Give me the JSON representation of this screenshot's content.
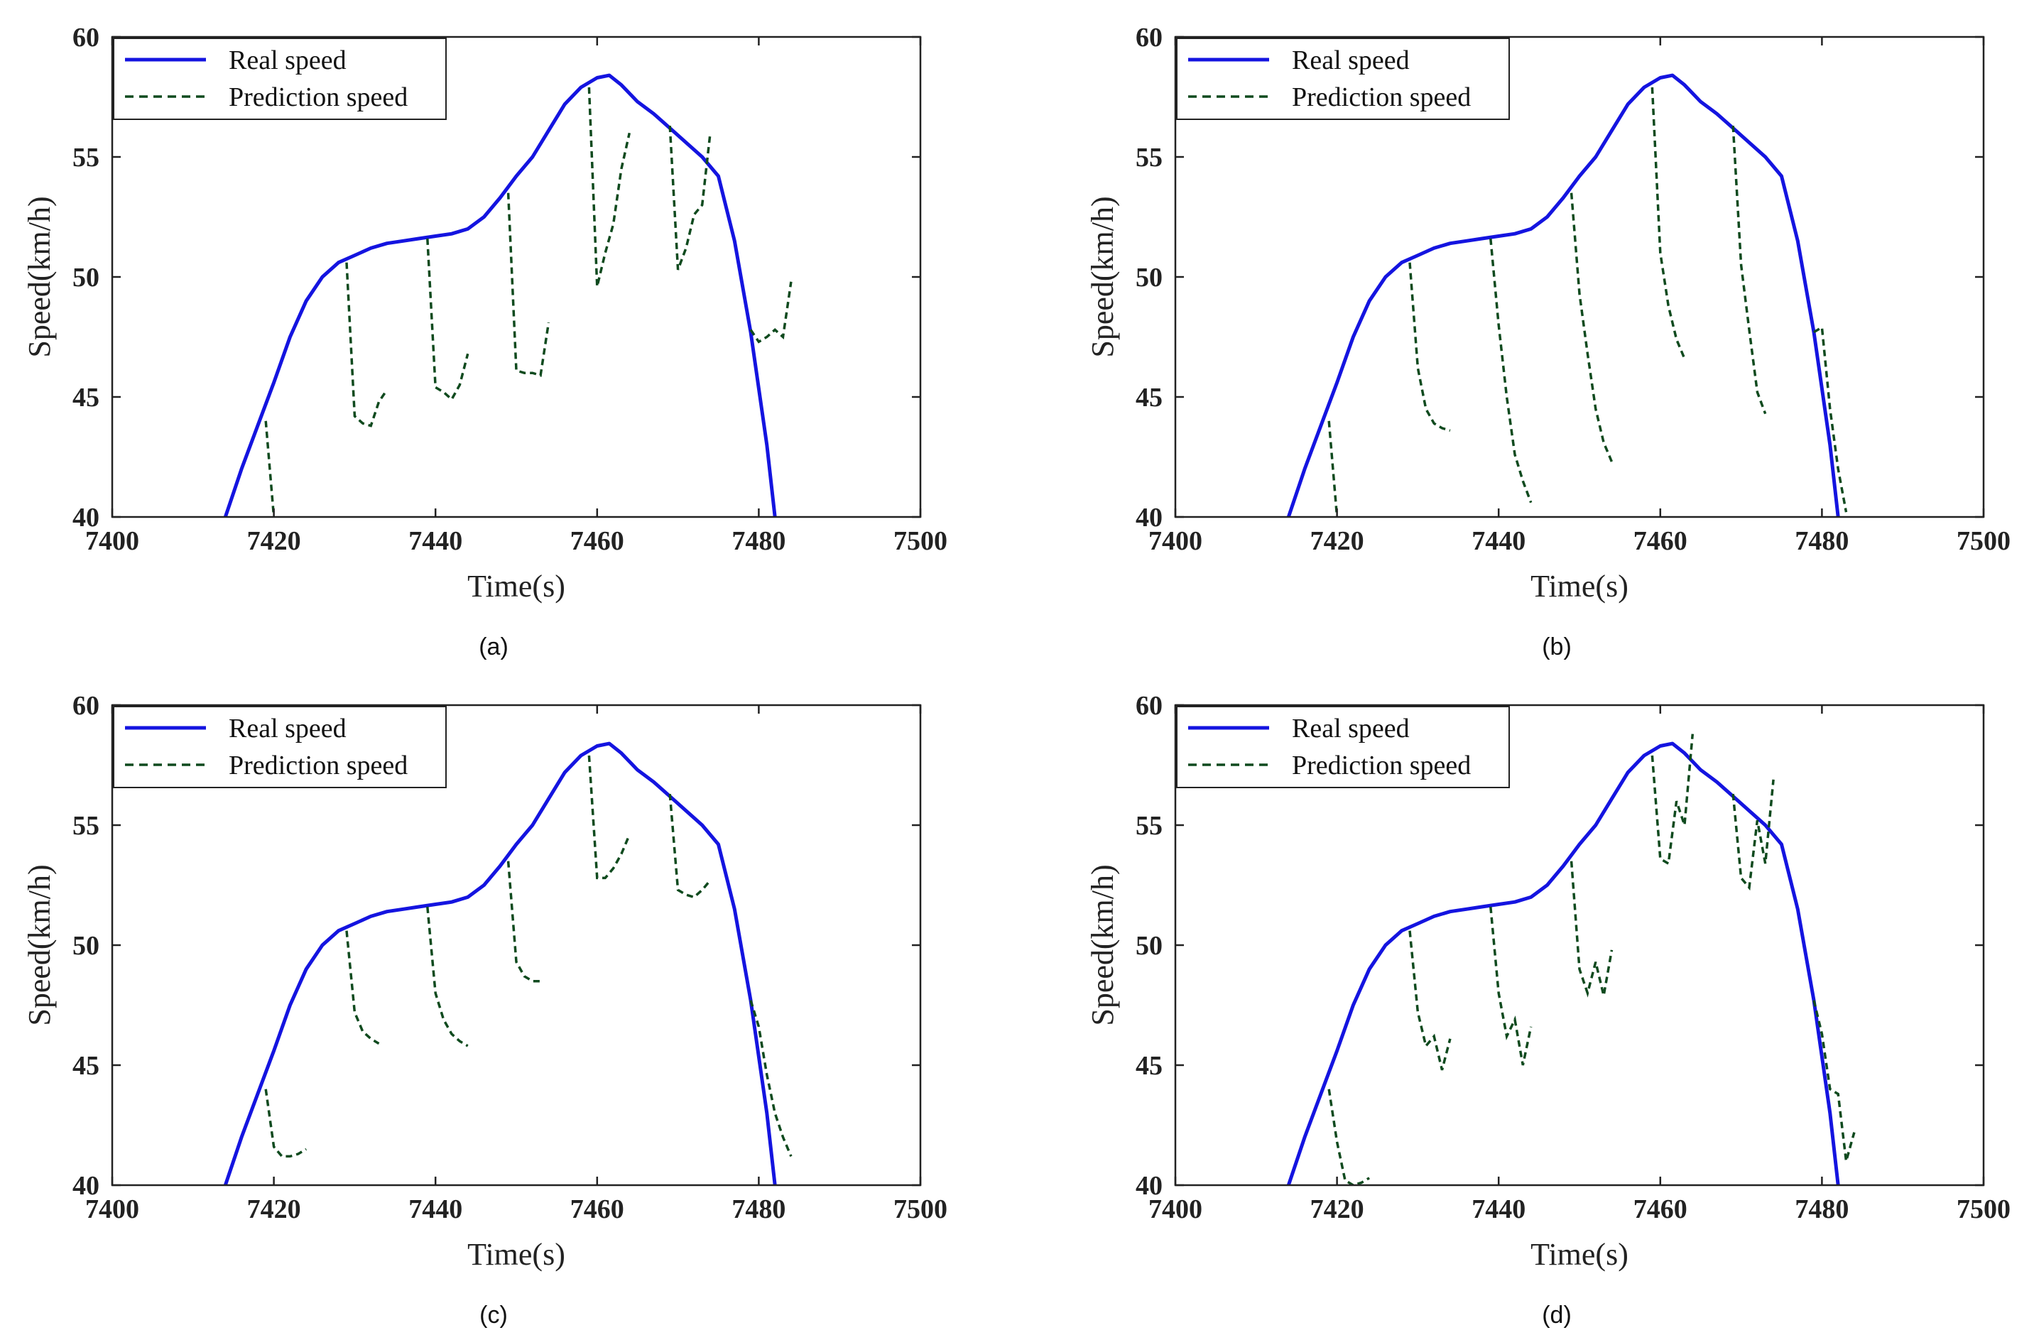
{
  "colors": {
    "real": "#1414e0",
    "prediction": "#0f4a1e",
    "axis": "#222222"
  },
  "chart_data": [
    {
      "type": "line",
      "caption": "(a)",
      "xlabel": "Time(s)",
      "ylabel": "Speed(km/h)",
      "xlim": [
        7400,
        7500
      ],
      "ylim": [
        40,
        60
      ],
      "xticks": [
        "7400",
        "7420",
        "7440",
        "7460",
        "7480",
        "7500"
      ],
      "yticks": [
        "40",
        "45",
        "50",
        "55",
        "60"
      ],
      "legend": [
        "Real speed",
        "Prediction speed"
      ],
      "series": [
        {
          "name": "Real speed",
          "x": [
            7414,
            7416,
            7418,
            7420,
            7422,
            7424,
            7426,
            7428,
            7430,
            7432,
            7434,
            7436,
            7438,
            7440,
            7442,
            7444,
            7446,
            7448,
            7450,
            7452,
            7454,
            7456,
            7458,
            7460,
            7461.5,
            7463,
            7465,
            7467,
            7469,
            7471,
            7473,
            7475,
            7477,
            7479,
            7481,
            7482
          ],
          "y": [
            40,
            42,
            43.8,
            45.6,
            47.5,
            49,
            50,
            50.6,
            50.9,
            51.2,
            51.4,
            51.5,
            51.6,
            51.7,
            51.8,
            52.0,
            52.5,
            53.3,
            54.2,
            55.0,
            56.1,
            57.2,
            57.9,
            58.3,
            58.4,
            58.0,
            57.3,
            56.8,
            56.2,
            55.6,
            55.0,
            54.2,
            51.5,
            47.7,
            43.0,
            40
          ]
        },
        {
          "name": "Prediction speed",
          "segments": [
            {
              "x": [
                7419,
                7420
              ],
              "y": [
                44,
                40
              ]
            },
            {
              "x": [
                7429,
                7430,
                7431,
                7432,
                7433,
                7434
              ],
              "y": [
                50.6,
                44.2,
                43.9,
                43.8,
                44.8,
                45.3
              ]
            },
            {
              "x": [
                7439,
                7440,
                7441,
                7442,
                7443,
                7444
              ],
              "y": [
                51.6,
                45.4,
                45.2,
                44.9,
                45.5,
                46.8
              ]
            },
            {
              "x": [
                7449,
                7450,
                7451,
                7452,
                7453,
                7454
              ],
              "y": [
                53.5,
                46.1,
                46.0,
                46.0,
                45.9,
                48.1
              ]
            },
            {
              "x": [
                7459,
                7460,
                7461,
                7462,
                7463,
                7464
              ],
              "y": [
                57.9,
                49.6,
                51.0,
                52.2,
                54.5,
                56.0
              ]
            },
            {
              "x": [
                7469,
                7470,
                7471,
                7472,
                7473,
                7474
              ],
              "y": [
                56.3,
                50.3,
                51.2,
                52.6,
                53.0,
                56.0
              ]
            },
            {
              "x": [
                7479,
                7480,
                7481,
                7482,
                7483,
                7484
              ],
              "y": [
                47.8,
                47.3,
                47.5,
                47.8,
                47.5,
                49.8
              ]
            }
          ]
        }
      ]
    },
    {
      "type": "line",
      "caption": "(b)",
      "xlabel": "Time(s)",
      "ylabel": "Speed(km/h)",
      "xlim": [
        7400,
        7500
      ],
      "ylim": [
        40,
        60
      ],
      "xticks": [
        "7400",
        "7420",
        "7440",
        "7460",
        "7480",
        "7500"
      ],
      "yticks": [
        "40",
        "45",
        "50",
        "55",
        "60"
      ],
      "legend": [
        "Real speed",
        "Prediction speed"
      ],
      "series": [
        {
          "name": "Real speed",
          "x": [
            7414,
            7416,
            7418,
            7420,
            7422,
            7424,
            7426,
            7428,
            7430,
            7432,
            7434,
            7436,
            7438,
            7440,
            7442,
            7444,
            7446,
            7448,
            7450,
            7452,
            7454,
            7456,
            7458,
            7460,
            7461.5,
            7463,
            7465,
            7467,
            7469,
            7471,
            7473,
            7475,
            7477,
            7479,
            7481,
            7482
          ],
          "y": [
            40,
            42,
            43.8,
            45.6,
            47.5,
            49,
            50,
            50.6,
            50.9,
            51.2,
            51.4,
            51.5,
            51.6,
            51.7,
            51.8,
            52.0,
            52.5,
            53.3,
            54.2,
            55.0,
            56.1,
            57.2,
            57.9,
            58.3,
            58.4,
            58.0,
            57.3,
            56.8,
            56.2,
            55.6,
            55.0,
            54.2,
            51.5,
            47.7,
            43.0,
            40
          ]
        },
        {
          "name": "Prediction speed",
          "segments": [
            {
              "x": [
                7419,
                7420
              ],
              "y": [
                44,
                40
              ]
            },
            {
              "x": [
                7429,
                7430,
                7431,
                7432,
                7433,
                7434
              ],
              "y": [
                50.6,
                46.2,
                44.5,
                43.9,
                43.7,
                43.6
              ]
            },
            {
              "x": [
                7439,
                7440,
                7441,
                7442,
                7443,
                7444
              ],
              "y": [
                51.6,
                48.0,
                45.0,
                42.6,
                41.5,
                40.6
              ]
            },
            {
              "x": [
                7449,
                7450,
                7451,
                7452,
                7453,
                7454
              ],
              "y": [
                53.5,
                49.3,
                46.8,
                44.5,
                43.1,
                42.3
              ]
            },
            {
              "x": [
                7459,
                7460,
                7461,
                7462,
                7463
              ],
              "y": [
                57.9,
                51.0,
                48.8,
                47.4,
                46.6
              ]
            },
            {
              "x": [
                7469,
                7470,
                7471,
                7472,
                7473
              ],
              "y": [
                56.3,
                50.5,
                47.8,
                45.2,
                44.3
              ]
            },
            {
              "x": [
                7479,
                7480,
                7481,
                7482,
                7483
              ],
              "y": [
                47.7,
                47.9,
                44.5,
                42.0,
                40.2
              ]
            }
          ]
        }
      ]
    },
    {
      "type": "line",
      "caption": "(c)",
      "xlabel": "Time(s)",
      "ylabel": "Speed(km/h)",
      "xlim": [
        7400,
        7500
      ],
      "ylim": [
        40,
        60
      ],
      "xticks": [
        "7400",
        "7420",
        "7440",
        "7460",
        "7480",
        "7500"
      ],
      "yticks": [
        "40",
        "45",
        "50",
        "55",
        "60"
      ],
      "legend": [
        "Real speed",
        "Prediction speed"
      ],
      "series": [
        {
          "name": "Real speed",
          "x": [
            7414,
            7416,
            7418,
            7420,
            7422,
            7424,
            7426,
            7428,
            7430,
            7432,
            7434,
            7436,
            7438,
            7440,
            7442,
            7444,
            7446,
            7448,
            7450,
            7452,
            7454,
            7456,
            7458,
            7460,
            7461.5,
            7463,
            7465,
            7467,
            7469,
            7471,
            7473,
            7475,
            7477,
            7479,
            7481,
            7482
          ],
          "y": [
            40,
            42,
            43.8,
            45.6,
            47.5,
            49,
            50,
            50.6,
            50.9,
            51.2,
            51.4,
            51.5,
            51.6,
            51.7,
            51.8,
            52.0,
            52.5,
            53.3,
            54.2,
            55.0,
            56.1,
            57.2,
            57.9,
            58.3,
            58.4,
            58.0,
            57.3,
            56.8,
            56.2,
            55.6,
            55.0,
            54.2,
            51.5,
            47.7,
            43.0,
            40
          ]
        },
        {
          "name": "Prediction speed",
          "segments": [
            {
              "x": [
                7419,
                7420,
                7421,
                7422,
                7423,
                7424
              ],
              "y": [
                44,
                41.6,
                41.2,
                41.2,
                41.3,
                41.5
              ]
            },
            {
              "x": [
                7429,
                7430,
                7431,
                7432,
                7433
              ],
              "y": [
                50.6,
                47.2,
                46.4,
                46.1,
                45.9
              ]
            },
            {
              "x": [
                7439,
                7440,
                7441,
                7442,
                7443,
                7444
              ],
              "y": [
                51.6,
                48.0,
                46.9,
                46.3,
                46.0,
                45.8
              ]
            },
            {
              "x": [
                7449,
                7450,
                7451,
                7452,
                7453
              ],
              "y": [
                53.5,
                49.3,
                48.7,
                48.5,
                48.5
              ]
            },
            {
              "x": [
                7459,
                7460,
                7461,
                7462,
                7463,
                7464
              ],
              "y": [
                57.9,
                52.8,
                52.8,
                53.2,
                53.8,
                54.6
              ]
            },
            {
              "x": [
                7469,
                7470,
                7471,
                7472,
                7473,
                7474
              ],
              "y": [
                56.3,
                52.3,
                52.1,
                52.0,
                52.3,
                52.7
              ]
            },
            {
              "x": [
                7479,
                7480,
                7481,
                7482,
                7483,
                7484
              ],
              "y": [
                47.7,
                46.6,
                44.6,
                43.0,
                42.0,
                41.2
              ]
            }
          ]
        }
      ]
    },
    {
      "type": "line",
      "caption": "(d)",
      "xlabel": "Time(s)",
      "ylabel": "Speed(km/h)",
      "xlim": [
        7400,
        7500
      ],
      "ylim": [
        40,
        60
      ],
      "xticks": [
        "7400",
        "7420",
        "7440",
        "7460",
        "7480",
        "7500"
      ],
      "yticks": [
        "40",
        "45",
        "50",
        "55",
        "60"
      ],
      "legend": [
        "Real speed",
        "Prediction speed"
      ],
      "series": [
        {
          "name": "Real speed",
          "x": [
            7414,
            7416,
            7418,
            7420,
            7422,
            7424,
            7426,
            7428,
            7430,
            7432,
            7434,
            7436,
            7438,
            7440,
            7442,
            7444,
            7446,
            7448,
            7450,
            7452,
            7454,
            7456,
            7458,
            7460,
            7461.5,
            7463,
            7465,
            7467,
            7469,
            7471,
            7473,
            7475,
            7477,
            7479,
            7481,
            7482
          ],
          "y": [
            40,
            42,
            43.8,
            45.6,
            47.5,
            49,
            50,
            50.6,
            50.9,
            51.2,
            51.4,
            51.5,
            51.6,
            51.7,
            51.8,
            52.0,
            52.5,
            53.3,
            54.2,
            55.0,
            56.1,
            57.2,
            57.9,
            58.3,
            58.4,
            58.0,
            57.3,
            56.8,
            56.2,
            55.6,
            55.0,
            54.2,
            51.5,
            47.7,
            43.0,
            40
          ]
        },
        {
          "name": "Prediction speed",
          "segments": [
            {
              "x": [
                7419,
                7420,
                7421,
                7422,
                7423,
                7424
              ],
              "y": [
                44,
                41.8,
                40.2,
                40.0,
                40.1,
                40.3
              ]
            },
            {
              "x": [
                7429,
                7430,
                7431,
                7432,
                7433,
                7434
              ],
              "y": [
                50.6,
                47.2,
                45.8,
                46.2,
                44.8,
                46.1
              ]
            },
            {
              "x": [
                7439,
                7440,
                7441,
                7442,
                7443,
                7444
              ],
              "y": [
                51.6,
                48.0,
                46.2,
                46.9,
                45.0,
                46.6
              ]
            },
            {
              "x": [
                7449,
                7450,
                7451,
                7452,
                7453,
                7454
              ],
              "y": [
                53.5,
                49.0,
                48.0,
                49.3,
                47.9,
                49.8
              ]
            },
            {
              "x": [
                7459,
                7460,
                7461,
                7462,
                7463,
                7464
              ],
              "y": [
                57.9,
                53.6,
                53.4,
                56.0,
                55.0,
                58.8
              ]
            },
            {
              "x": [
                7469,
                7470,
                7471,
                7472,
                7473,
                7474
              ],
              "y": [
                56.3,
                52.8,
                52.4,
                55.2,
                53.4,
                56.9
              ]
            },
            {
              "x": [
                7479,
                7480,
                7481,
                7482,
                7483,
                7484
              ],
              "y": [
                47.7,
                46.3,
                44.0,
                43.8,
                41.0,
                42.2
              ]
            }
          ]
        }
      ]
    }
  ]
}
